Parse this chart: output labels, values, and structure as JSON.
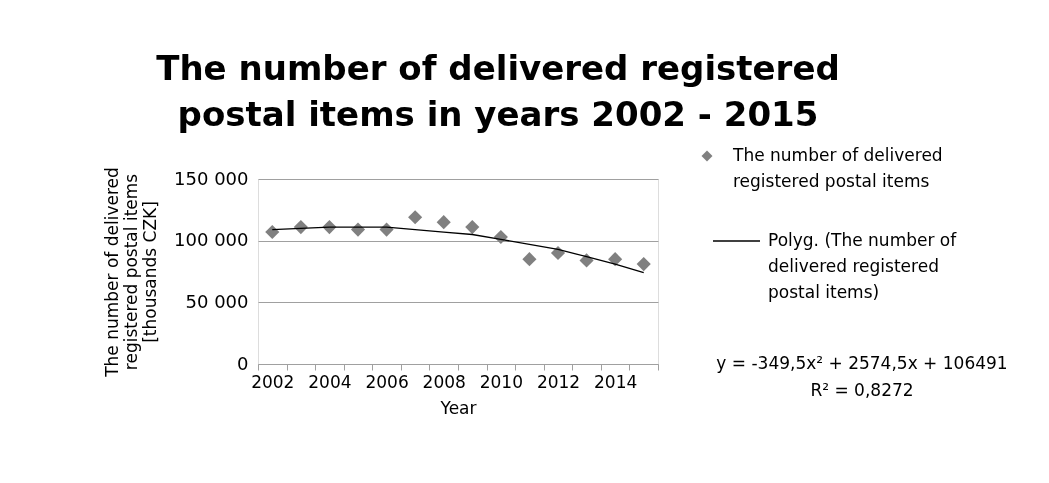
{
  "chart_data": {
    "type": "scatter",
    "title": "The number of delivered registered\npostal items in years 2002 - 2015",
    "xlabel": "Year",
    "ylabel": "The number of delivered\nregistered postal items\n[thousands CZK]",
    "categories": [
      "2002",
      null,
      "2004",
      null,
      "2006",
      null,
      "2008",
      null,
      "2010",
      null,
      "2012",
      null,
      "2014",
      null
    ],
    "series": [
      {
        "name": "The number of delivered registered postal items",
        "type": "scatter",
        "color": "#808080",
        "marker": "diamond",
        "values": [
          107000,
          111000,
          111000,
          109000,
          109000,
          119000,
          115000,
          111000,
          103000,
          85000,
          90000,
          84000,
          85000,
          81000
        ]
      },
      {
        "name": "Polyg. (The number of delivered registered postal items)",
        "type": "line",
        "color": "#000000",
        "line_style": "solid",
        "values": [
          109000,
          110000,
          111000,
          111000,
          111000,
          109000,
          107000,
          105000,
          101000,
          97000,
          93000,
          87000,
          81000,
          74000
        ]
      }
    ],
    "ylim": [
      0,
      150000
    ],
    "yticks": [
      0,
      50000,
      100000,
      150000
    ],
    "grid": "y",
    "legend": "right",
    "annotations": [
      "y = -349,5x² + 2574,5x + 106491",
      "R² = 0,8272"
    ]
  }
}
